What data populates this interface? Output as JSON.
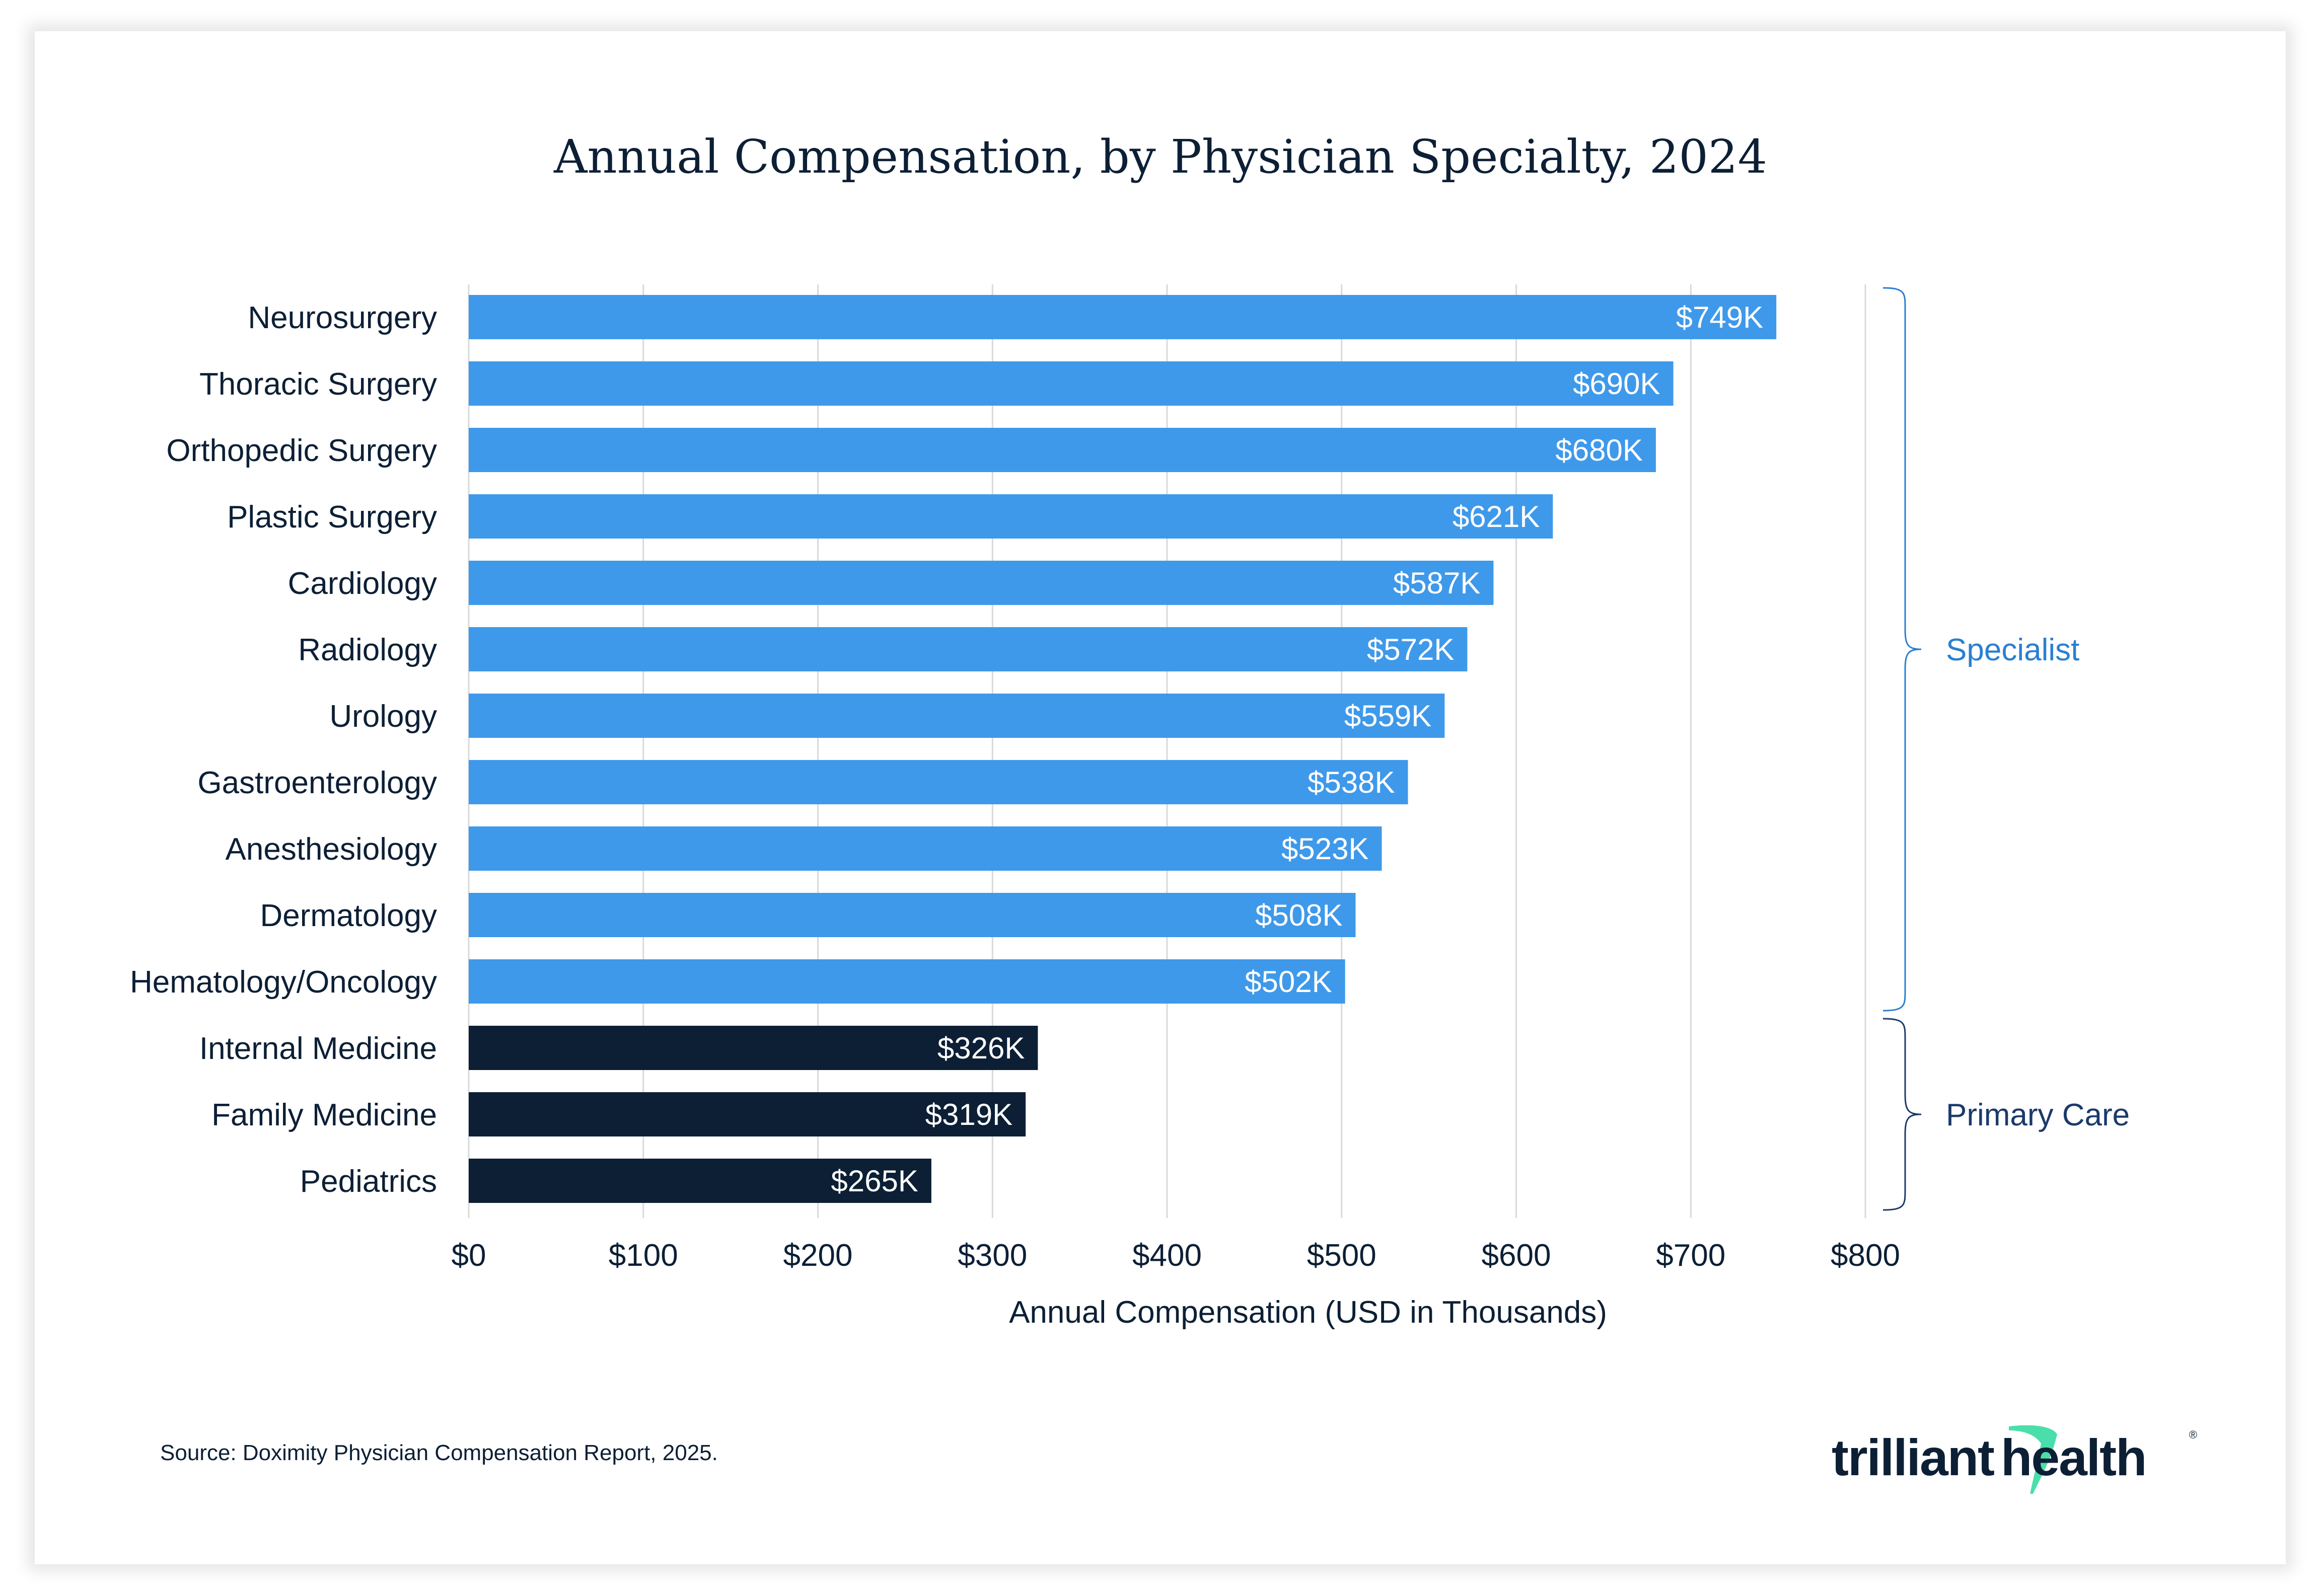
{
  "page": {
    "source_note": "Source: Doximity Physician Compensation Report, 2025.",
    "logo": {
      "name": "trilliant health",
      "left": "trilliant",
      "right": "health",
      "registered": "®",
      "accent_color": "#4ADFAA"
    }
  },
  "colors": {
    "specialist": "#3F99EA",
    "primary_care": "#0C1F35",
    "text": "#0C1F35",
    "grid": "#D9D9D9",
    "specialist_label": "#2A7FD0",
    "primary_care_label": "#1B3A6B"
  },
  "chart_data": {
    "type": "bar",
    "orientation": "horizontal",
    "title": "Annual Compensation, by Physician Specialty, 2024",
    "xlabel": "Annual Compensation (USD in Thousands)",
    "ylabel": "",
    "xlim": [
      0,
      800
    ],
    "xticks": [
      0,
      100,
      200,
      300,
      400,
      500,
      600,
      700,
      800
    ],
    "xtick_labels": [
      "$0",
      "$100",
      "$200",
      "$300",
      "$400",
      "$500",
      "$600",
      "$700",
      "$800"
    ],
    "grid": "vertical",
    "categories": [
      "Neurosurgery",
      "Thoracic Surgery",
      "Orthopedic Surgery",
      "Plastic Surgery",
      "Cardiology",
      "Radiology",
      "Urology",
      "Gastroenterology",
      "Anesthesiology",
      "Dermatology",
      "Hematology/Oncology",
      "Internal Medicine",
      "Family Medicine",
      "Pediatrics"
    ],
    "values": [
      749,
      690,
      680,
      621,
      587,
      572,
      559,
      538,
      523,
      508,
      502,
      326,
      319,
      265
    ],
    "data_labels": [
      "$749K",
      "$690K",
      "$680K",
      "$621K",
      "$587K",
      "$572K",
      "$559K",
      "$538K",
      "$523K",
      "$508K",
      "$502K",
      "$326K",
      "$319K",
      "$265K"
    ],
    "groups": [
      {
        "name": "Specialist",
        "start_index": 0,
        "end_index": 10
      },
      {
        "name": "Primary Care",
        "start_index": 11,
        "end_index": 13
      }
    ]
  }
}
